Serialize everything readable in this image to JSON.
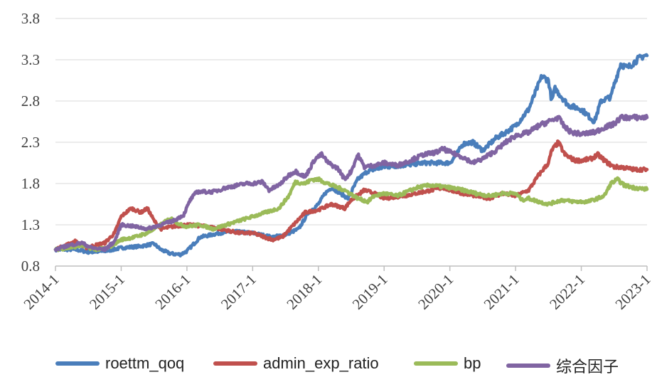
{
  "chart_data": {
    "type": "line",
    "title": "",
    "xlabel": "",
    "ylabel": "",
    "ylim": [
      0.8,
      3.8
    ],
    "yticks": [
      "0.8",
      "1.3",
      "1.8",
      "2.3",
      "2.8",
      "3.3",
      "3.8"
    ],
    "xticks": [
      "2014-1",
      "2015-1",
      "2016-1",
      "2017-1",
      "2018-1",
      "2019-1",
      "2020-1",
      "2021-1",
      "2022-1",
      "2023-1"
    ],
    "grid": "horizontal",
    "legend_position": "bottom",
    "series": [
      {
        "name": "roettm_qoq",
        "color": "#4a7ebb",
        "points": [
          [
            2014.0,
            1.0
          ],
          [
            2014.3,
            1.0
          ],
          [
            2014.5,
            0.97
          ],
          [
            2014.75,
            0.98
          ],
          [
            2015.0,
            1.02
          ],
          [
            2015.3,
            1.04
          ],
          [
            2015.5,
            1.07
          ],
          [
            2015.6,
            1.0
          ],
          [
            2015.75,
            0.95
          ],
          [
            2015.9,
            0.94
          ],
          [
            2016.0,
            0.98
          ],
          [
            2016.2,
            1.15
          ],
          [
            2016.5,
            1.2
          ],
          [
            2016.7,
            1.22
          ],
          [
            2017.0,
            1.2
          ],
          [
            2017.3,
            1.15
          ],
          [
            2017.5,
            1.18
          ],
          [
            2017.7,
            1.25
          ],
          [
            2017.85,
            1.45
          ],
          [
            2018.0,
            1.55
          ],
          [
            2018.1,
            1.68
          ],
          [
            2018.2,
            1.75
          ],
          [
            2018.3,
            1.7
          ],
          [
            2018.45,
            1.62
          ],
          [
            2018.6,
            1.85
          ],
          [
            2018.75,
            1.95
          ],
          [
            2019.0,
            2.0
          ],
          [
            2019.3,
            2.02
          ],
          [
            2019.6,
            2.05
          ],
          [
            2019.9,
            2.05
          ],
          [
            2020.0,
            2.05
          ],
          [
            2020.1,
            2.15
          ],
          [
            2020.2,
            2.28
          ],
          [
            2020.35,
            2.3
          ],
          [
            2020.5,
            2.2
          ],
          [
            2020.7,
            2.35
          ],
          [
            2020.85,
            2.42
          ],
          [
            2021.0,
            2.5
          ],
          [
            2021.1,
            2.6
          ],
          [
            2021.2,
            2.7
          ],
          [
            2021.3,
            2.9
          ],
          [
            2021.4,
            3.1
          ],
          [
            2021.5,
            3.05
          ],
          [
            2021.55,
            2.8
          ],
          [
            2021.6,
            2.95
          ],
          [
            2021.7,
            2.85
          ],
          [
            2021.8,
            2.75
          ],
          [
            2022.0,
            2.7
          ],
          [
            2022.2,
            2.55
          ],
          [
            2022.3,
            2.8
          ],
          [
            2022.45,
            2.85
          ],
          [
            2022.5,
            3.0
          ],
          [
            2022.6,
            3.25
          ],
          [
            2022.7,
            3.2
          ],
          [
            2022.85,
            3.3
          ],
          [
            2022.95,
            3.35
          ],
          [
            2023.0,
            3.35
          ]
        ]
      },
      {
        "name": "admin_exp_ratio",
        "color": "#c0504d",
        "points": [
          [
            2014.0,
            1.0
          ],
          [
            2014.15,
            1.05
          ],
          [
            2014.3,
            1.1
          ],
          [
            2014.45,
            1.02
          ],
          [
            2014.6,
            1.05
          ],
          [
            2014.75,
            1.08
          ],
          [
            2014.9,
            1.2
          ],
          [
            2015.0,
            1.4
          ],
          [
            2015.15,
            1.5
          ],
          [
            2015.3,
            1.45
          ],
          [
            2015.4,
            1.5
          ],
          [
            2015.5,
            1.35
          ],
          [
            2015.6,
            1.25
          ],
          [
            2015.8,
            1.28
          ],
          [
            2016.0,
            1.3
          ],
          [
            2016.3,
            1.28
          ],
          [
            2016.5,
            1.25
          ],
          [
            2016.8,
            1.2
          ],
          [
            2017.0,
            1.2
          ],
          [
            2017.3,
            1.12
          ],
          [
            2017.45,
            1.15
          ],
          [
            2017.6,
            1.28
          ],
          [
            2017.8,
            1.45
          ],
          [
            2018.0,
            1.48
          ],
          [
            2018.2,
            1.55
          ],
          [
            2018.4,
            1.5
          ],
          [
            2018.5,
            1.6
          ],
          [
            2018.7,
            1.72
          ],
          [
            2018.85,
            1.68
          ],
          [
            2019.0,
            1.62
          ],
          [
            2019.3,
            1.65
          ],
          [
            2019.6,
            1.7
          ],
          [
            2019.9,
            1.75
          ],
          [
            2020.0,
            1.72
          ],
          [
            2020.2,
            1.68
          ],
          [
            2020.4,
            1.65
          ],
          [
            2020.6,
            1.62
          ],
          [
            2020.8,
            1.68
          ],
          [
            2021.0,
            1.65
          ],
          [
            2021.2,
            1.72
          ],
          [
            2021.35,
            1.9
          ],
          [
            2021.5,
            2.05
          ],
          [
            2021.55,
            2.2
          ],
          [
            2021.65,
            2.3
          ],
          [
            2021.75,
            2.15
          ],
          [
            2021.9,
            2.08
          ],
          [
            2022.0,
            2.08
          ],
          [
            2022.15,
            2.1
          ],
          [
            2022.25,
            2.15
          ],
          [
            2022.4,
            2.05
          ],
          [
            2022.5,
            2.0
          ],
          [
            2022.6,
            2.0
          ],
          [
            2022.8,
            1.97
          ],
          [
            2023.0,
            1.97
          ]
        ]
      },
      {
        "name": "bp",
        "color": "#9bbb59",
        "points": [
          [
            2014.0,
            1.0
          ],
          [
            2014.2,
            1.02
          ],
          [
            2014.4,
            1.05
          ],
          [
            2014.6,
            1.0
          ],
          [
            2014.8,
            1.02
          ],
          [
            2015.0,
            1.12
          ],
          [
            2015.2,
            1.15
          ],
          [
            2015.4,
            1.2
          ],
          [
            2015.6,
            1.3
          ],
          [
            2015.75,
            1.38
          ],
          [
            2015.9,
            1.3
          ],
          [
            2016.0,
            1.28
          ],
          [
            2016.2,
            1.3
          ],
          [
            2016.4,
            1.25
          ],
          [
            2016.6,
            1.3
          ],
          [
            2016.8,
            1.35
          ],
          [
            2017.0,
            1.4
          ],
          [
            2017.2,
            1.45
          ],
          [
            2017.4,
            1.5
          ],
          [
            2017.55,
            1.65
          ],
          [
            2017.65,
            1.82
          ],
          [
            2017.8,
            1.8
          ],
          [
            2017.9,
            1.85
          ],
          [
            2018.0,
            1.85
          ],
          [
            2018.2,
            1.78
          ],
          [
            2018.4,
            1.72
          ],
          [
            2018.6,
            1.62
          ],
          [
            2018.75,
            1.58
          ],
          [
            2018.85,
            1.65
          ],
          [
            2019.0,
            1.68
          ],
          [
            2019.2,
            1.65
          ],
          [
            2019.35,
            1.7
          ],
          [
            2019.5,
            1.75
          ],
          [
            2019.7,
            1.78
          ],
          [
            2019.9,
            1.76
          ],
          [
            2020.0,
            1.75
          ],
          [
            2020.2,
            1.72
          ],
          [
            2020.4,
            1.68
          ],
          [
            2020.6,
            1.65
          ],
          [
            2020.8,
            1.68
          ],
          [
            2021.0,
            1.68
          ],
          [
            2021.1,
            1.6
          ],
          [
            2021.2,
            1.62
          ],
          [
            2021.35,
            1.58
          ],
          [
            2021.5,
            1.55
          ],
          [
            2021.7,
            1.6
          ],
          [
            2021.9,
            1.58
          ],
          [
            2022.1,
            1.58
          ],
          [
            2022.25,
            1.62
          ],
          [
            2022.35,
            1.65
          ],
          [
            2022.45,
            1.8
          ],
          [
            2022.55,
            1.85
          ],
          [
            2022.65,
            1.78
          ],
          [
            2022.8,
            1.75
          ],
          [
            2023.0,
            1.73
          ]
        ]
      },
      {
        "name": "综合因子",
        "color": "#8064a2",
        "points": [
          [
            2014.0,
            1.0
          ],
          [
            2014.2,
            1.05
          ],
          [
            2014.4,
            1.08
          ],
          [
            2014.55,
            1.02
          ],
          [
            2014.75,
            1.0
          ],
          [
            2014.9,
            1.1
          ],
          [
            2015.0,
            1.3
          ],
          [
            2015.2,
            1.28
          ],
          [
            2015.4,
            1.25
          ],
          [
            2015.6,
            1.3
          ],
          [
            2015.8,
            1.35
          ],
          [
            2015.95,
            1.42
          ],
          [
            2016.05,
            1.6
          ],
          [
            2016.15,
            1.7
          ],
          [
            2016.4,
            1.7
          ],
          [
            2016.6,
            1.75
          ],
          [
            2016.9,
            1.8
          ],
          [
            2017.0,
            1.8
          ],
          [
            2017.15,
            1.82
          ],
          [
            2017.25,
            1.72
          ],
          [
            2017.4,
            1.78
          ],
          [
            2017.55,
            1.9
          ],
          [
            2017.65,
            1.95
          ],
          [
            2017.8,
            1.88
          ],
          [
            2017.95,
            2.1
          ],
          [
            2018.05,
            2.15
          ],
          [
            2018.15,
            2.05
          ],
          [
            2018.3,
            1.98
          ],
          [
            2018.4,
            1.85
          ],
          [
            2018.5,
            1.95
          ],
          [
            2018.6,
            2.15
          ],
          [
            2018.7,
            2.0
          ],
          [
            2018.85,
            2.02
          ],
          [
            2019.0,
            2.05
          ],
          [
            2019.2,
            2.02
          ],
          [
            2019.4,
            2.08
          ],
          [
            2019.6,
            2.15
          ],
          [
            2019.8,
            2.18
          ],
          [
            2019.9,
            2.22
          ],
          [
            2020.0,
            2.18
          ],
          [
            2020.2,
            2.12
          ],
          [
            2020.35,
            2.05
          ],
          [
            2020.5,
            2.1
          ],
          [
            2020.7,
            2.2
          ],
          [
            2020.85,
            2.3
          ],
          [
            2021.0,
            2.38
          ],
          [
            2021.2,
            2.42
          ],
          [
            2021.35,
            2.5
          ],
          [
            2021.5,
            2.55
          ],
          [
            2021.65,
            2.6
          ],
          [
            2021.75,
            2.48
          ],
          [
            2021.85,
            2.42
          ],
          [
            2022.0,
            2.4
          ],
          [
            2022.2,
            2.42
          ],
          [
            2022.35,
            2.48
          ],
          [
            2022.5,
            2.52
          ],
          [
            2022.6,
            2.6
          ],
          [
            2022.8,
            2.6
          ],
          [
            2023.0,
            2.6
          ]
        ]
      }
    ]
  }
}
